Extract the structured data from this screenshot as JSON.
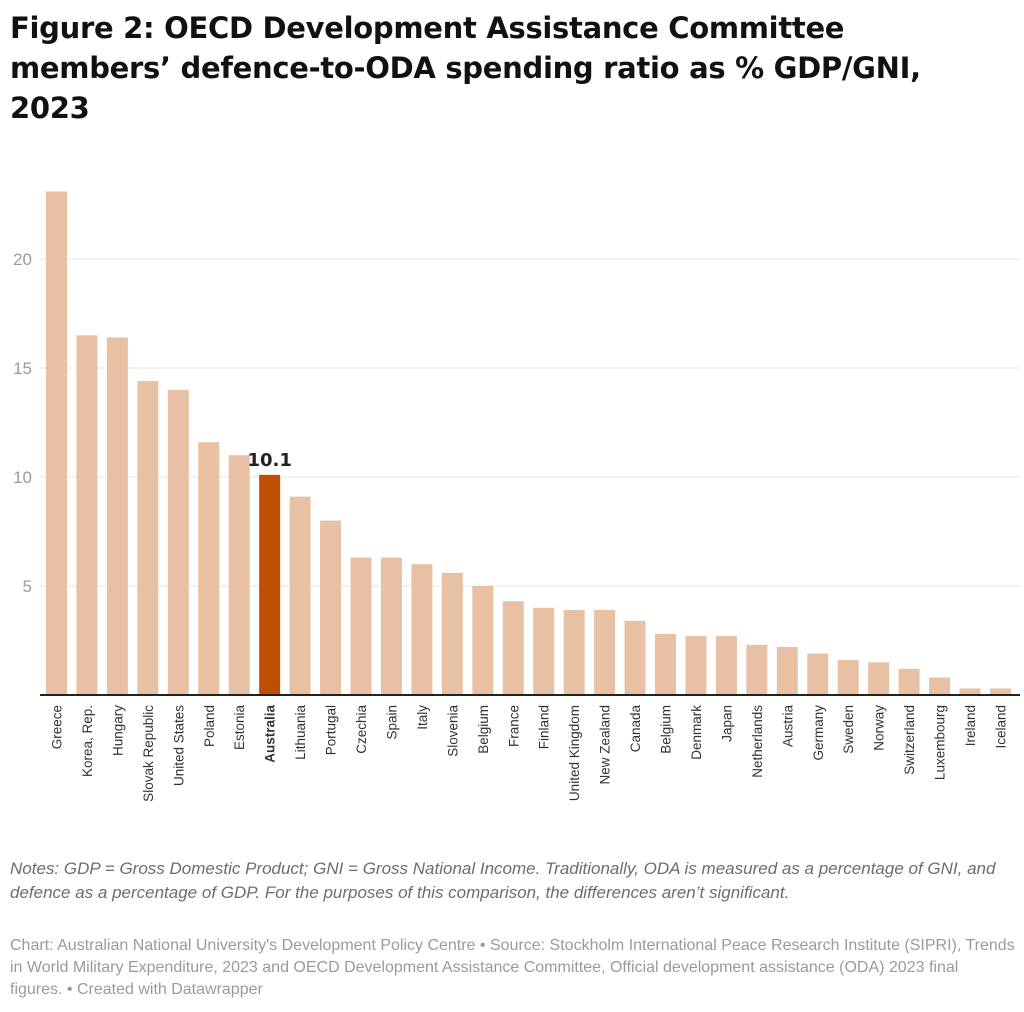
{
  "title": "Figure 2: OECD Development Assistance Committee members’ defence-to-ODA spending ratio as % GDP/GNI, 2023",
  "notes": "Notes: GDP = Gross Domestic Product; GNI = Gross National Income. Traditionally, ODA is measured as a percentage of GNI, and defence as a percentage of GDP. For the purposes of this comparison, the differences aren’t significant.",
  "source": "Chart: Australian National University's Development Policy Centre • Source: Stockholm International Peace Research Institute (SIPRI), Trends in World Military Expenditure, 2023 and OECD Development Assistance Committee, Official development assistance (ODA) 2023 final figures. • Created with Datawrapper",
  "chart_data": {
    "type": "bar",
    "title": "",
    "xlabel": "",
    "ylabel": "",
    "ylim": [
      0,
      23.5
    ],
    "yticks": [
      5,
      10,
      15,
      20
    ],
    "grid": true,
    "categories": [
      "Greece",
      "Korea, Rep.",
      "Hungary",
      "Slovak Republic",
      "United States",
      "Poland",
      "Estonia",
      "Australia",
      "Lithuania",
      "Portugal",
      "Czechia",
      "Spain",
      "Italy",
      "Slovenia",
      "Belgium",
      "France",
      "Finland",
      "United Kingdom",
      "New Zealand",
      "Canada",
      "Belgium",
      "Denmark",
      "Japan",
      "Netherlands",
      "Austria",
      "Germany",
      "Sweden",
      "Norway",
      "Switzerland",
      "Luxembourg",
      "Ireland",
      "Iceland"
    ],
    "values": [
      23.1,
      16.5,
      16.4,
      14.4,
      14.0,
      11.6,
      11.0,
      10.1,
      9.1,
      8.0,
      6.3,
      6.3,
      6.0,
      5.6,
      5.0,
      4.3,
      4.0,
      3.9,
      3.9,
      3.4,
      2.8,
      2.7,
      2.7,
      2.3,
      2.2,
      1.9,
      1.6,
      1.5,
      1.2,
      0.8,
      0.3,
      0.3
    ],
    "highlight": {
      "category": "Australia",
      "label": "10.1"
    },
    "colors": {
      "bar": "#e8c1a4",
      "highlight": "#bf4f00",
      "grid": "#e5e5e5",
      "axis": "#222222",
      "tick_label": "#9a9a9a"
    }
  }
}
